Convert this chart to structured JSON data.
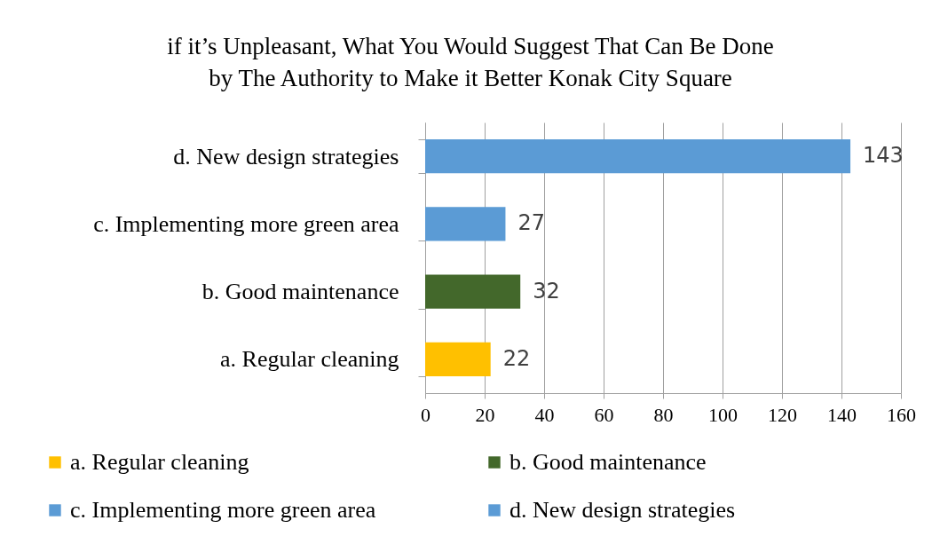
{
  "chart_data": {
    "type": "bar",
    "orientation": "horizontal",
    "title": "if it’s Unpleasant, What You Would Suggest That Can Be Done\nby The Authority to Make it Better Konak City Square",
    "categories": [
      "d. New design strategies",
      "c. Implementing more green area",
      "b. Good maintenance",
      "a. Regular cleaning"
    ],
    "series": [
      {
        "name": "a. Regular cleaning",
        "color": "#ffc000",
        "values": [
          null,
          null,
          null,
          22
        ]
      },
      {
        "name": "b. Good maintenance",
        "color": "#43682b",
        "values": [
          null,
          null,
          32,
          null
        ]
      },
      {
        "name": "c. Implementing more green area",
        "color": "#5b9bd5",
        "values": [
          null,
          27,
          null,
          null
        ]
      },
      {
        "name": "d. New design strategies",
        "color": "#5b9bd5",
        "values": [
          143,
          null,
          null,
          null
        ]
      }
    ],
    "xlim": [
      0,
      160
    ],
    "xticks": [
      0,
      20,
      40,
      60,
      80,
      100,
      120,
      140,
      160
    ],
    "grid": "x",
    "data_labels": true,
    "legend": "bottom"
  }
}
